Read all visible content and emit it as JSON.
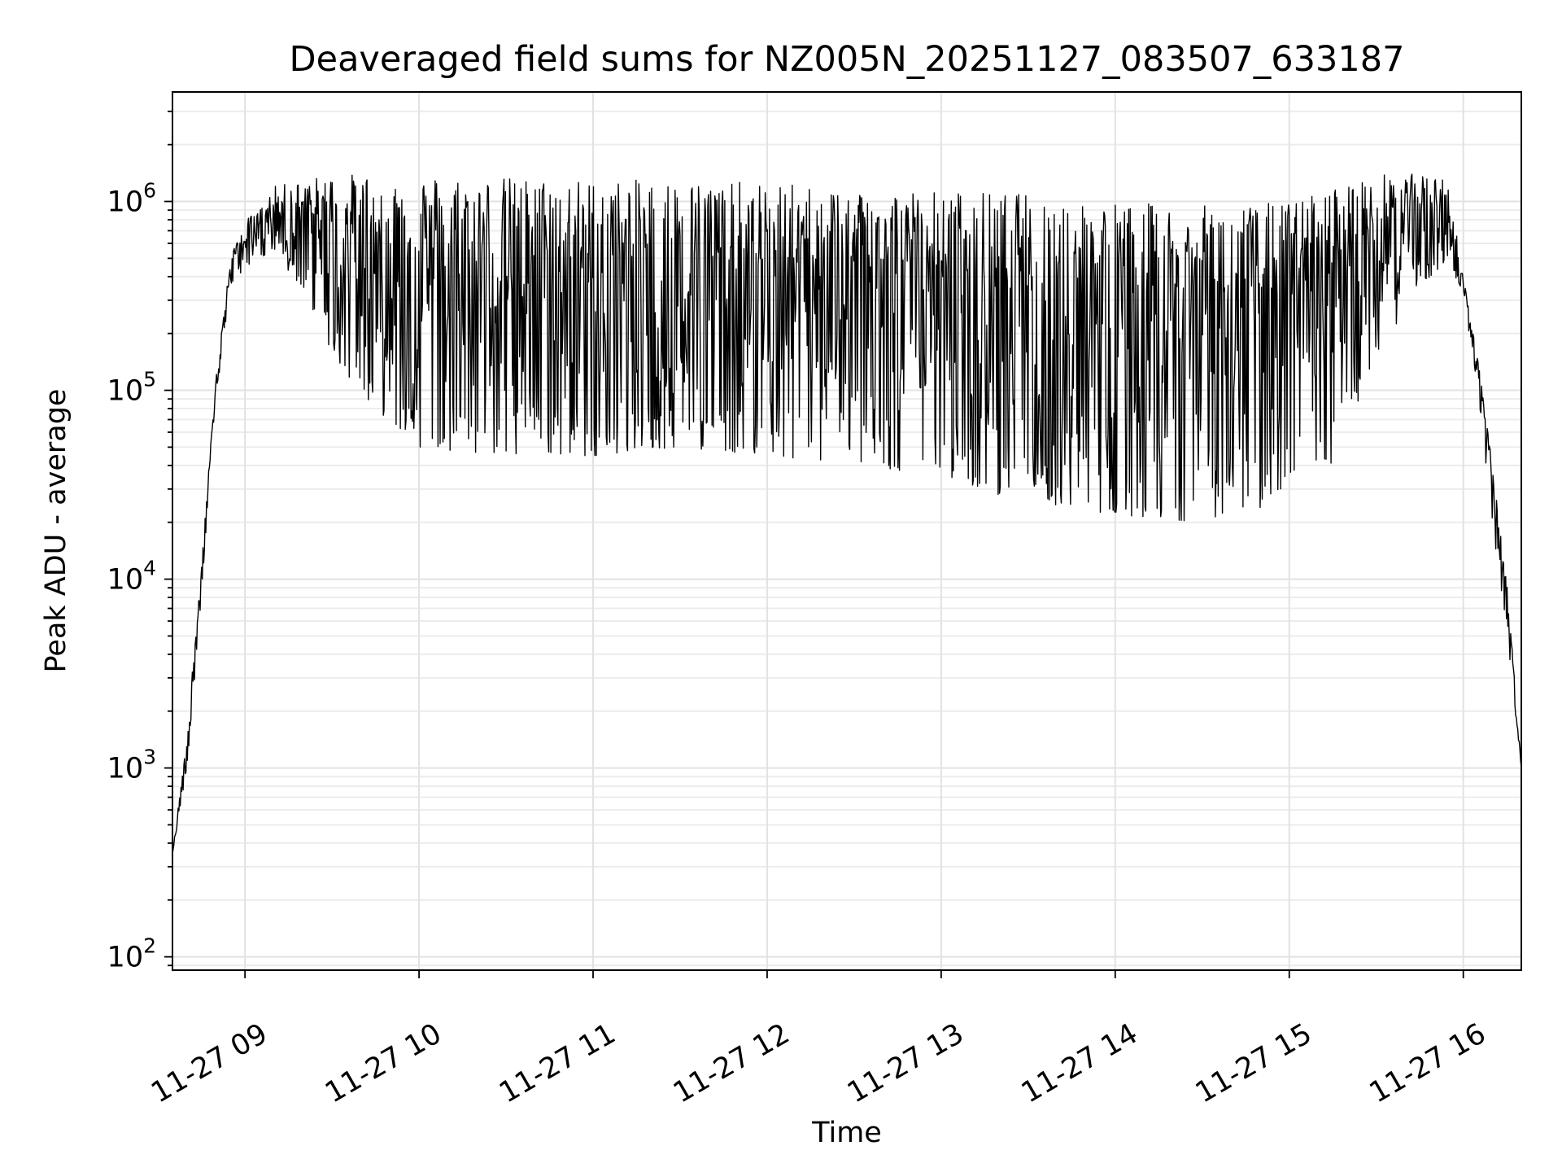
{
  "chart_data": {
    "type": "line",
    "title": "Deaveraged field sums for NZ005N_20251127_083507_633187",
    "xlabel": "Time",
    "ylabel": "Peak ADU - average",
    "yscale": "log",
    "ylim": [
      85,
      3800000
    ],
    "xlim": [
      "2025-11-27 08:35",
      "2025-11-27 16:20"
    ],
    "grid": true,
    "x_tick_values": [
      "2025-11-27 09:00",
      "2025-11-27 10:00",
      "2025-11-27 11:00",
      "2025-11-27 12:00",
      "2025-11-27 13:00",
      "2025-11-27 14:00",
      "2025-11-27 15:00",
      "2025-11-27 16:00"
    ],
    "x_tick_labels": [
      "11-27 09",
      "11-27 10",
      "11-27 11",
      "11-27 12",
      "11-27 13",
      "11-27 14",
      "11-27 15",
      "11-27 16"
    ],
    "y_ticks": [
      {
        "value": 100,
        "base": "10",
        "exp": "2"
      },
      {
        "value": 1000,
        "base": "10",
        "exp": "3"
      },
      {
        "value": 10000,
        "base": "10",
        "exp": "4"
      },
      {
        "value": 100000,
        "base": "10",
        "exp": "5"
      },
      {
        "value": 1000000,
        "base": "10",
        "exp": "6"
      }
    ],
    "series": [
      {
        "color": "#000000",
        "x": [
          "2025-11-27 08:35",
          "2025-11-27 08:40",
          "2025-11-27 08:45",
          "2025-11-27 08:50",
          "2025-11-27 08:55",
          "2025-11-27 09:00",
          "2025-11-27 09:05",
          "2025-11-27 09:10",
          "2025-11-27 09:20",
          "2025-11-27 09:30",
          "2025-11-27 09:45",
          "2025-11-27 10:00",
          "2025-11-27 10:30",
          "2025-11-27 11:00",
          "2025-11-27 11:30",
          "2025-11-27 12:00",
          "2025-11-27 12:30",
          "2025-11-27 13:00",
          "2025-11-27 13:30",
          "2025-11-27 14:00",
          "2025-11-27 14:30",
          "2025-11-27 15:00",
          "2025-11-27 15:15",
          "2025-11-27 15:30",
          "2025-11-27 15:45",
          "2025-11-27 15:55",
          "2025-11-27 16:00",
          "2025-11-27 16:05",
          "2025-11-27 16:10",
          "2025-11-27 16:15",
          "2025-11-27 16:20"
        ],
        "upper": [
          350,
          1500,
          12000,
          120000,
          500000,
          800000,
          900000,
          1200000,
          1300000,
          1400000,
          1400000,
          1400000,
          1350000,
          1300000,
          1300000,
          1250000,
          1200000,
          1150000,
          1100000,
          1000000,
          950000,
          1000000,
          1200000,
          1400000,
          1400000,
          1300000,
          400000,
          150000,
          40000,
          10000,
          1000
        ],
        "lower": [
          350,
          1000,
          8000,
          90000,
          350000,
          450000,
          500000,
          500000,
          350000,
          150000,
          80000,
          50000,
          45000,
          45000,
          50000,
          45000,
          40000,
          35000,
          25000,
          22000,
          20000,
          25000,
          40000,
          150000,
          350000,
          500000,
          280000,
          100000,
          20000,
          5000,
          1000
        ]
      }
    ]
  }
}
